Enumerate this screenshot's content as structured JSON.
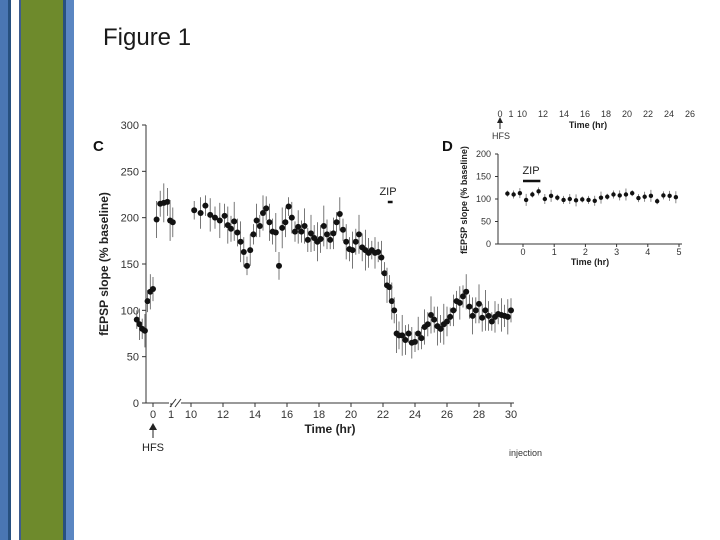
{
  "slide": {
    "title": "Figure 1"
  },
  "colors": {
    "sidebar_blue": "#4a76b3",
    "sidebar_olive": "#6e8a2c",
    "marker": "#111111"
  },
  "chart_data": [
    {
      "panel": "C",
      "type": "scatter",
      "ylabel": "fEPSP slope (% baseline)",
      "xlabel": "Time (hr)",
      "ylim": [
        0,
        300
      ],
      "yticks": [
        "0",
        "50",
        "100",
        "150",
        "200",
        "250",
        "300"
      ],
      "xticks_pre": [
        "0",
        "1"
      ],
      "xticks_post": [
        "10",
        "12",
        "14",
        "16",
        "18",
        "20",
        "22",
        "24",
        "26",
        "28",
        "30"
      ],
      "axis_break": "1-10",
      "annotations": {
        "drug": "ZIP",
        "drug_start": 22.3,
        "drug_end": 22.6,
        "stimulus": "HFS",
        "stimulus_time": 0
      },
      "series": [
        {
          "values": [
            [
              -0.9,
              90
            ],
            [
              -0.75,
              85
            ],
            [
              -0.6,
              80
            ],
            [
              -0.45,
              78
            ],
            [
              -0.3,
              110
            ],
            [
              -0.15,
              120
            ],
            [
              0.0,
              123
            ],
            [
              0.2,
              198
            ],
            [
              0.4,
              215
            ],
            [
              0.6,
              216
            ],
            [
              0.8,
              217
            ],
            [
              0.95,
              197
            ],
            [
              1.1,
              195
            ],
            [
              10.2,
              208
            ],
            [
              10.6,
              205
            ],
            [
              10.9,
              213
            ],
            [
              11.2,
              203
            ],
            [
              11.5,
              200
            ],
            [
              11.8,
              197
            ],
            [
              12.1,
              202
            ],
            [
              12.3,
              192
            ],
            [
              12.5,
              188
            ],
            [
              12.7,
              196
            ],
            [
              12.9,
              184
            ],
            [
              13.1,
              174
            ],
            [
              13.3,
              163
            ],
            [
              13.5,
              148
            ],
            [
              13.7,
              165
            ],
            [
              13.9,
              182
            ],
            [
              14.1,
              197
            ],
            [
              14.3,
              191
            ],
            [
              14.5,
              205
            ],
            [
              14.7,
              210
            ],
            [
              14.9,
              195
            ],
            [
              15.1,
              185
            ],
            [
              15.3,
              184
            ],
            [
              15.5,
              148
            ],
            [
              15.7,
              189
            ],
            [
              15.9,
              195
            ],
            [
              16.1,
              212
            ],
            [
              16.3,
              200
            ],
            [
              16.5,
              185
            ],
            [
              16.7,
              190
            ],
            [
              16.9,
              185
            ],
            [
              17.1,
              191
            ],
            [
              17.3,
              176
            ],
            [
              17.5,
              183
            ],
            [
              17.7,
              178
            ],
            [
              17.9,
              174
            ],
            [
              18.1,
              177
            ],
            [
              18.3,
              191
            ],
            [
              18.5,
              182
            ],
            [
              18.7,
              176
            ],
            [
              18.9,
              183
            ],
            [
              19.1,
              195
            ],
            [
              19.3,
              204
            ],
            [
              19.5,
              187
            ],
            [
              19.7,
              174
            ],
            [
              19.9,
              166
            ],
            [
              20.1,
              165
            ],
            [
              20.3,
              174
            ],
            [
              20.5,
              182
            ],
            [
              20.7,
              168
            ],
            [
              20.9,
              165
            ],
            [
              21.1,
              162
            ],
            [
              21.3,
              165
            ],
            [
              21.5,
              162
            ],
            [
              21.7,
              163
            ],
            [
              21.9,
              157
            ],
            [
              22.1,
              140
            ],
            [
              22.25,
              127
            ],
            [
              22.4,
              125
            ],
            [
              22.55,
              110
            ],
            [
              22.7,
              100
            ],
            [
              22.85,
              75
            ],
            [
              23.0,
              73
            ],
            [
              23.2,
              73
            ],
            [
              23.4,
              68
            ],
            [
              23.6,
              75
            ],
            [
              23.8,
              65
            ],
            [
              24.0,
              66
            ],
            [
              24.2,
              75
            ],
            [
              24.4,
              70
            ],
            [
              24.6,
              82
            ],
            [
              24.8,
              85
            ],
            [
              25.0,
              95
            ],
            [
              25.2,
              90
            ],
            [
              25.4,
              83
            ],
            [
              25.6,
              80
            ],
            [
              25.8,
              85
            ],
            [
              26.0,
              88
            ],
            [
              26.2,
              93
            ],
            [
              26.4,
              100
            ],
            [
              26.6,
              110
            ],
            [
              26.8,
              108
            ],
            [
              27.0,
              115
            ],
            [
              27.2,
              120
            ],
            [
              27.4,
              104
            ],
            [
              27.6,
              94
            ],
            [
              27.8,
              100
            ],
            [
              28.0,
              107
            ],
            [
              28.2,
              92
            ],
            [
              28.4,
              100
            ],
            [
              28.6,
              94
            ],
            [
              28.8,
              88
            ],
            [
              29.0,
              93
            ],
            [
              29.2,
              96
            ],
            [
              29.4,
              95
            ],
            [
              29.6,
              94
            ],
            [
              29.8,
              93
            ],
            [
              30.0,
              100
            ]
          ]
        }
      ]
    },
    {
      "panel": "D",
      "type": "scatter",
      "ylabel": "fEPSP slope (% baseline)",
      "xlabel": "Time (hr)",
      "ylim": [
        0,
        200
      ],
      "yticks": [
        "0",
        "50",
        "100",
        "150",
        "200"
      ],
      "xlim": [
        -0.6,
        5
      ],
      "xticks": [
        "0",
        "1",
        "2",
        "3",
        "4",
        "5"
      ],
      "annotations": {
        "drug": "ZIP",
        "drug_start": 0,
        "drug_end": 0.3
      },
      "series": [
        {
          "values": [
            [
              -0.5,
              112
            ],
            [
              -0.3,
              110
            ],
            [
              -0.1,
              113
            ],
            [
              0.1,
              98
            ],
            [
              0.3,
              110
            ],
            [
              0.5,
              117
            ],
            [
              0.7,
              100
            ],
            [
              0.9,
              107
            ],
            [
              1.1,
              103
            ],
            [
              1.3,
              98
            ],
            [
              1.5,
              100
            ],
            [
              1.7,
              97
            ],
            [
              1.9,
              99
            ],
            [
              2.1,
              98
            ],
            [
              2.3,
              96
            ],
            [
              2.5,
              103
            ],
            [
              2.7,
              105
            ],
            [
              2.9,
              110
            ],
            [
              3.1,
              108
            ],
            [
              3.3,
              110
            ],
            [
              3.5,
              113
            ],
            [
              3.7,
              102
            ],
            [
              3.9,
              105
            ],
            [
              4.1,
              107
            ],
            [
              4.3,
              95
            ],
            [
              4.5,
              108
            ],
            [
              4.7,
              107
            ],
            [
              4.9,
              104
            ]
          ]
        }
      ],
      "top_axis_label": "Time (hr)",
      "top_axis_ticks": [
        "0",
        "1",
        "10",
        "12",
        "14",
        "16",
        "18",
        "20",
        "22",
        "24",
        "26"
      ],
      "stimulus": "HFS"
    }
  ],
  "clipped_text": {
    "bottom_label": "injection"
  }
}
